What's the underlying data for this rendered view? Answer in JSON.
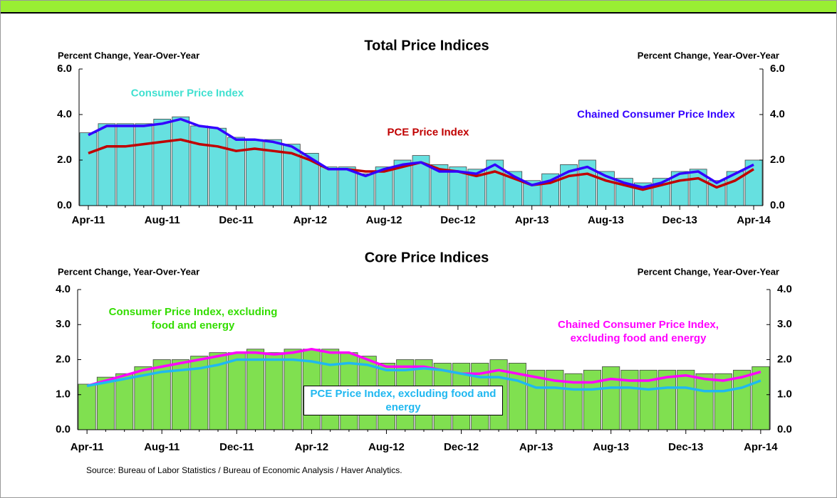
{
  "chart_data": [
    {
      "type": "bar",
      "title": "Total Price Indices",
      "ylabel": "Percent Change, Year-Over-Year",
      "y2label": "Percent Change, Year-Over-Year",
      "categories": [
        "Apr-11",
        null,
        null,
        null,
        "Aug-11",
        null,
        null,
        null,
        "Dec-11",
        null,
        null,
        null,
        "Apr-12",
        null,
        null,
        null,
        "Aug-12",
        null,
        null,
        null,
        "Dec-12",
        null,
        null,
        null,
        "Apr-13",
        null,
        null,
        null,
        "Aug-13",
        null,
        null,
        null,
        "Dec-13",
        null,
        null,
        null,
        "Apr-14"
      ],
      "ylim": [
        0,
        6
      ],
      "yticks": [
        {
          "value": 0,
          "label": "0.0"
        },
        {
          "value": 2,
          "label": "2.0"
        },
        {
          "value": 4,
          "label": "4.0"
        },
        {
          "value": 6,
          "label": "6.0"
        }
      ],
      "y2lim": [
        0,
        6
      ],
      "y2ticks": [
        {
          "value": 0,
          "label": "0.0"
        },
        {
          "value": 2,
          "label": "2.0"
        },
        {
          "value": 4,
          "label": "4.0"
        },
        {
          "value": 6,
          "label": "6.0"
        }
      ],
      "series": [
        {
          "name": "Consumer Price Index",
          "type": "bar",
          "color": "#66e0e0",
          "label_color": "#40e0d0",
          "values": [
            3.2,
            3.6,
            3.6,
            3.6,
            3.8,
            3.9,
            3.5,
            3.4,
            3.0,
            2.9,
            2.9,
            2.7,
            2.3,
            1.7,
            1.7,
            1.4,
            1.7,
            2.0,
            2.2,
            1.8,
            1.7,
            1.6,
            2.0,
            1.5,
            1.1,
            1.4,
            1.8,
            2.0,
            1.5,
            1.2,
            1.0,
            1.2,
            1.5,
            1.6,
            1.1,
            1.5,
            2.0
          ]
        },
        {
          "name": "PCE Price Index",
          "type": "line",
          "color": "#c00000",
          "label_color": "#c00000",
          "values": [
            2.3,
            2.6,
            2.6,
            2.7,
            2.8,
            2.9,
            2.7,
            2.6,
            2.4,
            2.5,
            2.4,
            2.3,
            2.0,
            1.6,
            1.6,
            1.5,
            1.5,
            1.7,
            1.9,
            1.6,
            1.5,
            1.3,
            1.5,
            1.2,
            0.9,
            1.0,
            1.3,
            1.4,
            1.1,
            0.9,
            0.7,
            0.9,
            1.1,
            1.2,
            0.8,
            1.1,
            1.6
          ]
        },
        {
          "name": "Chained Consumer Price Index",
          "type": "line",
          "color": "#3300ff",
          "label_color": "#3300ff",
          "values": [
            3.1,
            3.5,
            3.5,
            3.5,
            3.6,
            3.8,
            3.5,
            3.4,
            2.9,
            2.9,
            2.8,
            2.6,
            2.1,
            1.6,
            1.6,
            1.3,
            1.6,
            1.8,
            1.9,
            1.5,
            1.5,
            1.4,
            1.8,
            1.3,
            0.9,
            1.1,
            1.5,
            1.7,
            1.3,
            1.0,
            0.8,
            1.0,
            1.4,
            1.5,
            1.0,
            1.4,
            1.8
          ]
        }
      ]
    },
    {
      "type": "bar",
      "title": "Core Price Indices",
      "ylabel": "Percent Change, Year-Over-Year",
      "y2label": "Percent Change, Year-Over-Year",
      "categories": [
        "Apr-11",
        null,
        null,
        null,
        "Aug-11",
        null,
        null,
        null,
        "Dec-11",
        null,
        null,
        null,
        "Apr-12",
        null,
        null,
        null,
        "Aug-12",
        null,
        null,
        null,
        "Dec-12",
        null,
        null,
        null,
        "Apr-13",
        null,
        null,
        null,
        "Aug-13",
        null,
        null,
        null,
        "Dec-13",
        null,
        null,
        null,
        "Apr-14"
      ],
      "ylim": [
        0,
        4
      ],
      "yticks": [
        {
          "value": 0,
          "label": "0.0"
        },
        {
          "value": 1,
          "label": "1.0"
        },
        {
          "value": 2,
          "label": "2.0"
        },
        {
          "value": 3,
          "label": "3.0"
        },
        {
          "value": 4,
          "label": "4.0"
        }
      ],
      "y2lim": [
        0,
        4
      ],
      "y2ticks": [
        {
          "value": 0,
          "label": "0.0"
        },
        {
          "value": 1,
          "label": "1.0"
        },
        {
          "value": 2,
          "label": "2.0"
        },
        {
          "value": 3,
          "label": "3.0"
        },
        {
          "value": 4,
          "label": "4.0"
        }
      ],
      "series": [
        {
          "name": "Consumer Price Index, excluding food and energy",
          "type": "bar",
          "color": "#80e050",
          "label_color": "#33dd00",
          "values": [
            1.3,
            1.5,
            1.6,
            1.8,
            2.0,
            2.0,
            2.1,
            2.2,
            2.2,
            2.3,
            2.2,
            2.3,
            2.3,
            2.3,
            2.2,
            2.1,
            1.9,
            2.0,
            2.0,
            1.9,
            1.9,
            1.9,
            2.0,
            1.9,
            1.7,
            1.7,
            1.6,
            1.7,
            1.8,
            1.7,
            1.7,
            1.7,
            1.7,
            1.6,
            1.6,
            1.7,
            1.8
          ]
        },
        {
          "name": "Chained Consumer Price Index, excluding food and energy",
          "type": "line",
          "color": "#ff00ff",
          "label_color": "#ff00ff",
          "values": [
            1.25,
            1.4,
            1.55,
            1.7,
            1.8,
            1.9,
            2.0,
            2.1,
            2.2,
            2.2,
            2.15,
            2.2,
            2.3,
            2.2,
            2.2,
            2.0,
            1.8,
            1.8,
            1.8,
            1.7,
            1.6,
            1.6,
            1.7,
            1.6,
            1.5,
            1.4,
            1.35,
            1.35,
            1.45,
            1.4,
            1.4,
            1.5,
            1.55,
            1.45,
            1.4,
            1.5,
            1.65
          ]
        },
        {
          "name": "PCE Price Index, excluding food and energy",
          "type": "line",
          "color": "#20b8f0",
          "label_color": "#20b8f0",
          "values": [
            1.25,
            1.35,
            1.45,
            1.55,
            1.65,
            1.7,
            1.75,
            1.85,
            2.0,
            2.0,
            2.0,
            2.0,
            1.95,
            1.85,
            1.9,
            1.85,
            1.7,
            1.7,
            1.75,
            1.7,
            1.6,
            1.5,
            1.5,
            1.4,
            1.2,
            1.2,
            1.15,
            1.15,
            1.2,
            1.2,
            1.15,
            1.2,
            1.2,
            1.1,
            1.1,
            1.2,
            1.4
          ]
        }
      ]
    }
  ],
  "source": "Source: Bureau of Labor Statistics / Bureau of Economic Analysis / Haver Analytics."
}
